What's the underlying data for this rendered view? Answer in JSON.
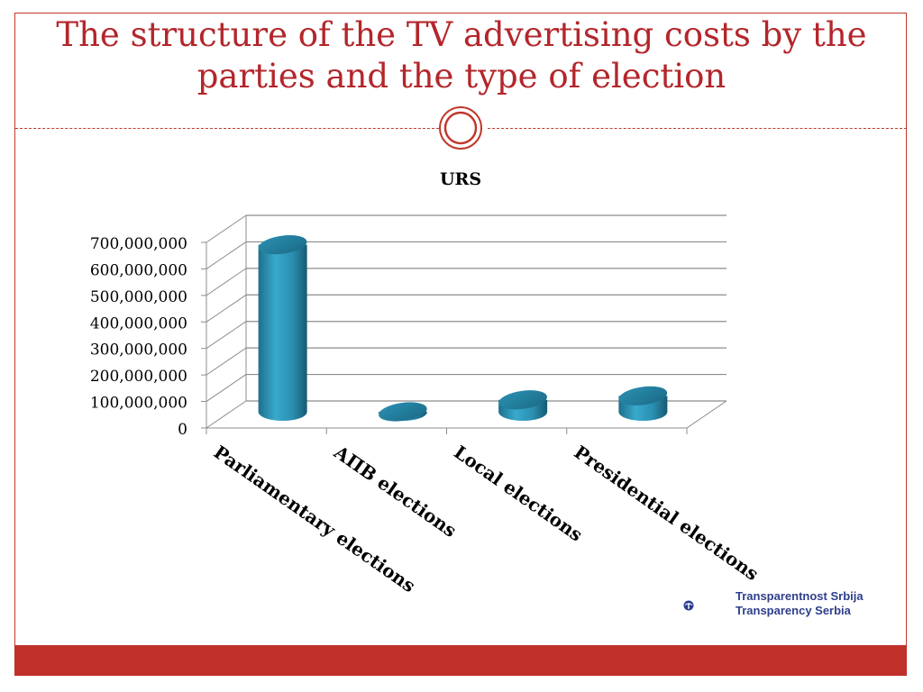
{
  "slide": {
    "title": "The structure of the TV advertising costs by the parties and the type of election"
  },
  "logo": {
    "line1": "Transparentnost Srbija",
    "line2": "Transparency Serbia"
  },
  "colors": {
    "accent": "#b3262b",
    "bar": "#2a8fb0",
    "bottom_bar": "#c0302b",
    "logo": "#2e3e8c"
  },
  "chart_data": {
    "type": "bar",
    "title": "URS",
    "categories": [
      "Parliamentary elections",
      "АПВ elections",
      "Local elections",
      "Presidential elections"
    ],
    "values": [
      630000000,
      0,
      45000000,
      60000000
    ],
    "ylim": [
      0,
      700000000
    ],
    "yticks": [
      "0",
      "100,000,000",
      "200,000,000",
      "300,000,000",
      "400,000,000",
      "500,000,000",
      "600,000,000",
      "700,000,000"
    ],
    "grid": true,
    "legend": "none",
    "style": "3d-cylinder"
  }
}
